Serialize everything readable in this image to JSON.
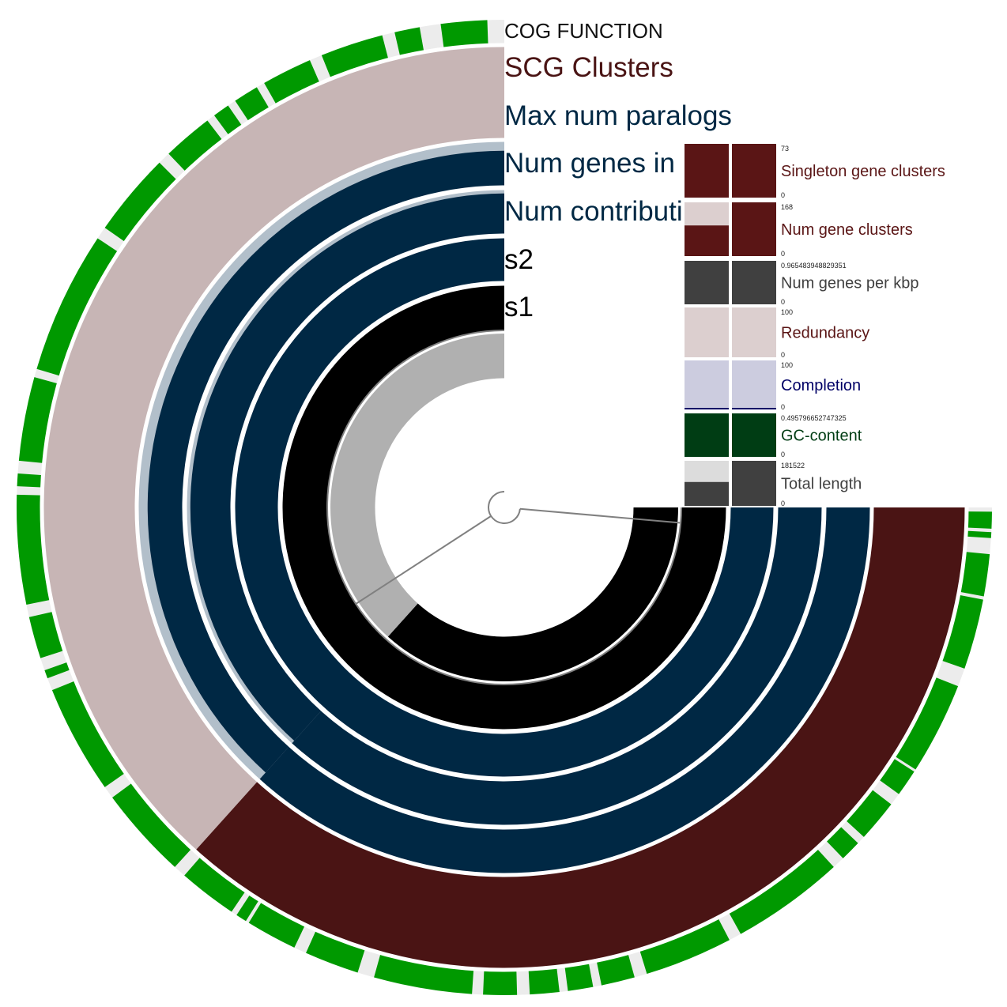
{
  "chart_data": {
    "type": "circular-phylogram",
    "colors": {
      "cog": "#009900",
      "cog_gap": "#ececec",
      "scg_bg": "#c7b5b5",
      "scg_fill": "#4a1414",
      "navy": "#002844",
      "navy_bg": "#b2bfca",
      "s2": "#000000",
      "s1": "#b0b0b0",
      "tree": "#808080"
    },
    "split_angle_deg": 222,
    "layers": [
      {
        "key": "cog",
        "name": "COG FUNCTION",
        "type": "categorical"
      },
      {
        "key": "scg",
        "name": "SCG Clusters",
        "fill_start_deg": 222
      },
      {
        "key": "maxpara",
        "name": "Max num paralogs",
        "step_deg": 140,
        "step_fraction": 0.78
      },
      {
        "key": "numgenes",
        "name": "Num genes in gene cluster",
        "step_deg": 137,
        "step_fraction": 0.9
      },
      {
        "key": "numcontrib",
        "name": "Num contributing genomes"
      },
      {
        "key": "s2",
        "name": "s2",
        "fill_start_deg": 222
      },
      {
        "key": "s1",
        "name": "s1",
        "fill_start_deg": 222
      }
    ],
    "cog_blocks_deg": [
      [
        0,
        2.2
      ],
      [
        2.4,
        8.6
      ],
      [
        8.8,
        13.7
      ],
      [
        13.9,
        15.1
      ],
      [
        15.3,
        18
      ],
      [
        18.2,
        21.5
      ],
      [
        22.2,
        29.2
      ],
      [
        30.3,
        36
      ],
      [
        38,
        53
      ],
      [
        54.4,
        57.6
      ],
      [
        58,
        61
      ],
      [
        62,
        63.5
      ],
      [
        64.5,
        68.5
      ],
      [
        69.7,
        73.2
      ],
      [
        74.8,
        78
      ],
      [
        79,
        80.5
      ],
      [
        81.2,
        82.5
      ],
      [
        83.5,
        85
      ],
      [
        86.5,
        89.5
      ],
      [
        90.5,
        92.5
      ],
      [
        92.9,
        93.6
      ],
      [
        95.5,
        100.5
      ],
      [
        100.9,
        109.3
      ],
      [
        111.5,
        122.5
      ],
      [
        122.8,
        126
      ],
      [
        127.5,
        132.5
      ],
      [
        133.5,
        136
      ],
      [
        137.5,
        151
      ],
      [
        152.5,
        163
      ],
      [
        164.5,
        168.5
      ],
      [
        169.5,
        172.5
      ],
      [
        173.5,
        177
      ],
      [
        178.5,
        182.5
      ],
      [
        183.8,
        195.5
      ],
      [
        197.5,
        204
      ],
      [
        205.5,
        211.6
      ],
      [
        212,
        213.3
      ],
      [
        214,
        221
      ],
      [
        222.5,
        233.5
      ],
      [
        235,
        248
      ],
      [
        249.5,
        250.5
      ],
      [
        252,
        257
      ],
      [
        258.5,
        271.5
      ],
      [
        272.5,
        274
      ],
      [
        275.5,
        285.5
      ],
      [
        286.5,
        303.5
      ],
      [
        305,
        315
      ],
      [
        316.5,
        322.5
      ],
      [
        323.5,
        325.5
      ],
      [
        326.5,
        329.5
      ],
      [
        330.5,
        336.5
      ],
      [
        338,
        345.5
      ],
      [
        347,
        350
      ],
      [
        352.5,
        358
      ]
    ],
    "legend": [
      {
        "name": "Singleton gene clusters",
        "max": "73",
        "min": "0",
        "color": "#5a1515",
        "light": "#dccfcf",
        "s1": 1,
        "s2": 1
      },
      {
        "name": "Num gene clusters",
        "max": "168",
        "min": "0",
        "color": "#5a1515",
        "light": "#dccfcf",
        "s1": 0.57,
        "s2": 1
      },
      {
        "name": "Num genes per kbp",
        "max": "0.965483948829351",
        "min": "0",
        "color": "#404040",
        "light": "#dcdcdc",
        "s1": 1,
        "s2": 1
      },
      {
        "name": "Redundancy",
        "max": "100",
        "min": "0",
        "color": "#5a1515",
        "light": "#dccfcf",
        "s1": 0,
        "s2": 0
      },
      {
        "name": "Completion",
        "max": "100",
        "min": "0",
        "color": "#000066",
        "light": "#ccccdf",
        "s1": 0.02,
        "s2": 0.02
      },
      {
        "name": "GC-content",
        "max": "0.495796652747325",
        "min": "0",
        "color": "#003d14",
        "light": "#d2dcd4",
        "s1": 1,
        "s2": 1
      },
      {
        "name": "Total length",
        "max": "181522",
        "min": "0",
        "color": "#404040",
        "light": "#dcdcdc",
        "s1": 0.53,
        "s2": 1
      }
    ]
  }
}
